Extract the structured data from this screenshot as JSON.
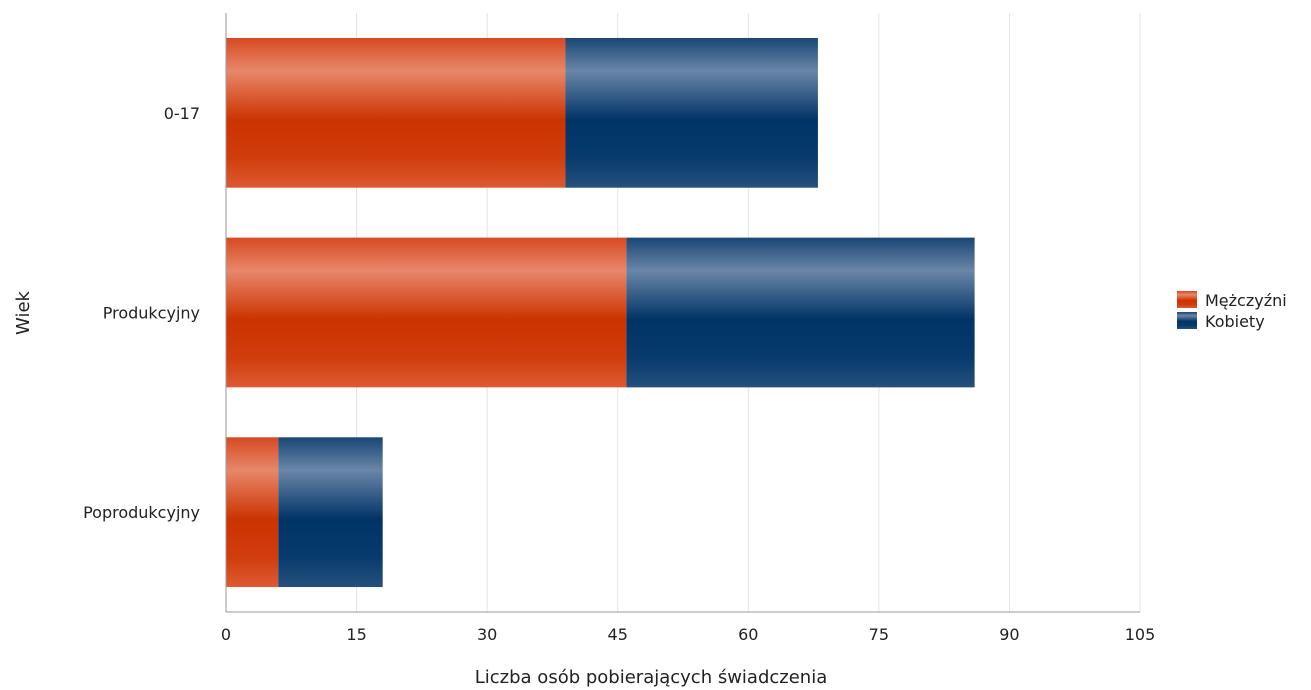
{
  "chart_data": {
    "type": "bar",
    "orientation": "horizontal",
    "stacked": true,
    "categories": [
      "0-17",
      "Produkcyjny",
      "Poprodukcyjny"
    ],
    "series": [
      {
        "name": "Mężczyźni",
        "values": [
          39,
          46,
          6
        ],
        "color": "#cc3300"
      },
      {
        "name": "Kobiety",
        "values": [
          29,
          40,
          12
        ],
        "color": "#003366"
      }
    ],
    "xlabel": "Liczba osób pobierających świadczenia",
    "ylabel": "Wiek",
    "xlim": [
      0,
      105
    ],
    "xticks": [
      "0",
      "15",
      "30",
      "45",
      "60",
      "75",
      "90",
      "105"
    ],
    "grid": true,
    "legend_position": "right"
  }
}
